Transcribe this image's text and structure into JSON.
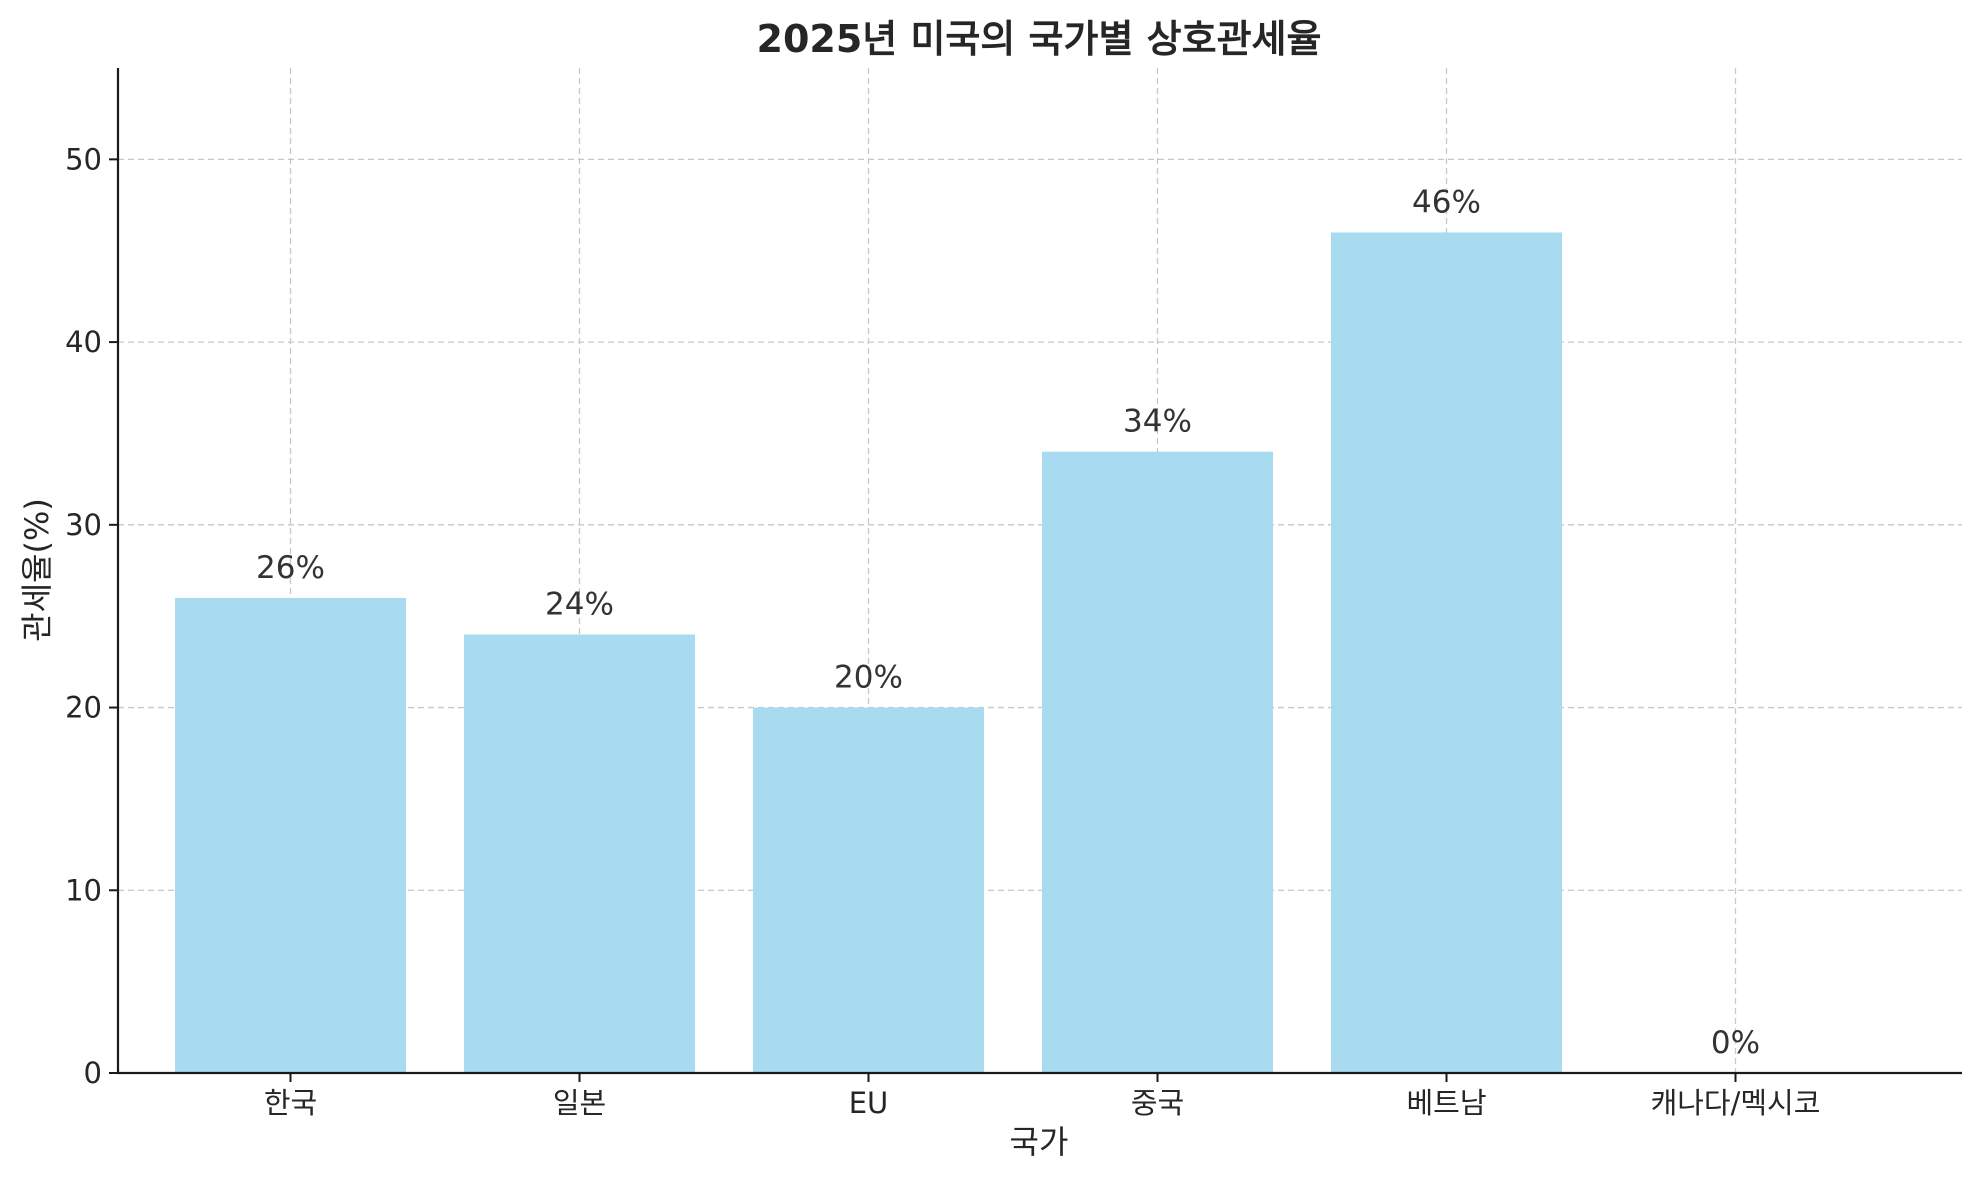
{
  "chart_data": {
    "type": "bar",
    "title": "2025년 미국의 국가별 상호관세율",
    "xlabel": "국가",
    "ylabel": "관세율(%)",
    "categories": [
      "한국",
      "일본",
      "EU",
      "중국",
      "베트남",
      "캐나다/멕시코"
    ],
    "values": [
      26,
      24,
      20,
      34,
      46,
      0
    ],
    "data_labels": [
      "26%",
      "24%",
      "20%",
      "34%",
      "46%",
      "0%"
    ],
    "yticks": [
      0,
      10,
      20,
      30,
      40,
      50
    ],
    "ylim": [
      0,
      55
    ],
    "grid": true,
    "bar_color": "#a8dbef"
  }
}
